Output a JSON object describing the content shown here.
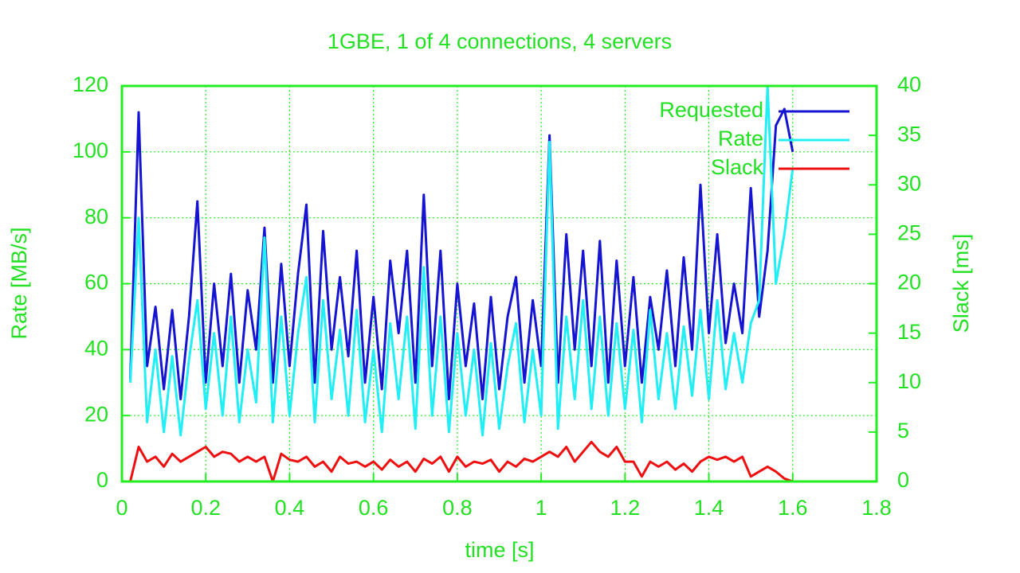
{
  "chart_data": {
    "type": "line",
    "title": "1GBE, 1 of 4 connections, 4 servers",
    "x_label": "time [s]",
    "y_label": "Rate [MB/s]",
    "y2_label": "Slack [ms]",
    "x": [
      0.02,
      0.04,
      0.06,
      0.08,
      0.1,
      0.12,
      0.14,
      0.16,
      0.18,
      0.2,
      0.22,
      0.24,
      0.26,
      0.28,
      0.3,
      0.32,
      0.34,
      0.36,
      0.38,
      0.4,
      0.42,
      0.44,
      0.46,
      0.48,
      0.5,
      0.52,
      0.54,
      0.56,
      0.58,
      0.6,
      0.62,
      0.64,
      0.66,
      0.68,
      0.7,
      0.72,
      0.74,
      0.76,
      0.78,
      0.8,
      0.82,
      0.84,
      0.86,
      0.88,
      0.9,
      0.92,
      0.94,
      0.96,
      0.98,
      1.0,
      1.02,
      1.04,
      1.06,
      1.08,
      1.1,
      1.12,
      1.14,
      1.16,
      1.18,
      1.2,
      1.22,
      1.24,
      1.26,
      1.28,
      1.3,
      1.32,
      1.34,
      1.36,
      1.38,
      1.4,
      1.42,
      1.44,
      1.46,
      1.48,
      1.5,
      1.52,
      1.54,
      1.56,
      1.58,
      1.6
    ],
    "series": [
      {
        "name": "Requested",
        "color": "#1414d2",
        "values": [
          31,
          112,
          35,
          53,
          28,
          52,
          25,
          50,
          85,
          30,
          60,
          35,
          63,
          30,
          58,
          40,
          77,
          30,
          66,
          35,
          63,
          84,
          30,
          76,
          40,
          62,
          38,
          70,
          30,
          56,
          28,
          67,
          45,
          70,
          30,
          87,
          35,
          70,
          25,
          60,
          35,
          54,
          25,
          56,
          28,
          50,
          62,
          30,
          55,
          35,
          105,
          30,
          75,
          40,
          70,
          35,
          73,
          30,
          67,
          35,
          62,
          30,
          56,
          40,
          64,
          35,
          68,
          40,
          90,
          45,
          75,
          42,
          60,
          45,
          89,
          50,
          70,
          108,
          113,
          100
        ]
      },
      {
        "name": "Rate",
        "color": "#22eef6",
        "values": [
          30,
          80,
          18,
          40,
          15,
          38,
          14,
          37,
          55,
          22,
          45,
          20,
          50,
          18,
          40,
          24,
          74,
          18,
          50,
          20,
          45,
          62,
          18,
          55,
          25,
          46,
          20,
          52,
          18,
          40,
          15,
          48,
          25,
          50,
          16,
          65,
          20,
          50,
          15,
          45,
          20,
          40,
          14,
          42,
          16,
          35,
          48,
          18,
          40,
          20,
          103,
          16,
          50,
          25,
          55,
          22,
          50,
          20,
          48,
          22,
          46,
          18,
          52,
          25,
          45,
          22,
          47,
          26,
          52,
          25,
          55,
          28,
          45,
          30,
          48,
          55,
          120,
          60,
          75,
          95
        ]
      },
      {
        "name": "Slack",
        "color": "#ee1010",
        "axis": "y2",
        "values": [
          0,
          3.5,
          2,
          2.5,
          1.5,
          2.8,
          2,
          2.5,
          3,
          3.5,
          2.5,
          3,
          2.8,
          2,
          2.5,
          2,
          2.5,
          0,
          2.8,
          2.2,
          2,
          2.5,
          1.5,
          2,
          1,
          2.5,
          1.8,
          2,
          1.5,
          2,
          1.2,
          2.2,
          1.5,
          2,
          1,
          2.3,
          1.8,
          2.5,
          1,
          2.5,
          1.5,
          2,
          1.8,
          2.2,
          1,
          2,
          1.5,
          2.3,
          2,
          2.5,
          3,
          2.5,
          3.5,
          2,
          3,
          4,
          3,
          2.5,
          3.5,
          2,
          2,
          0.5,
          2,
          1.5,
          2,
          1.2,
          1.8,
          1,
          2,
          2.5,
          2.2,
          2.5,
          2,
          2.5,
          0.5,
          1,
          1.5,
          1,
          0.3,
          0
        ]
      }
    ],
    "xlim": [
      0,
      1.8
    ],
    "xticks": [
      0,
      0.2,
      0.4,
      0.6,
      0.8,
      1,
      1.2,
      1.4,
      1.6,
      1.8
    ],
    "ylim": [
      0,
      120
    ],
    "yticks": [
      0,
      20,
      40,
      60,
      80,
      100,
      120
    ],
    "y2lim": [
      0,
      40
    ],
    "y2ticks": [
      0,
      5,
      10,
      15,
      20,
      25,
      30,
      35,
      40
    ],
    "grid": true,
    "legend": "top-right",
    "axis_color": "#22ee22"
  }
}
